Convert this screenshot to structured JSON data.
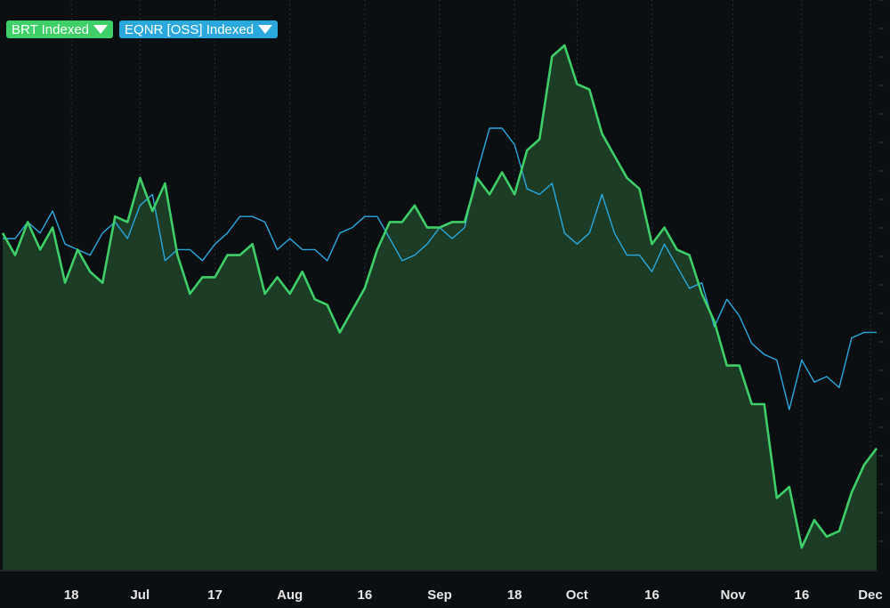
{
  "legend": [
    {
      "label": "BRT Indexed",
      "color": "#3fcf68"
    },
    {
      "label": "EQNR [OSS] Indexed",
      "color": "#2aa8de"
    }
  ],
  "chart_data": {
    "type": "line",
    "ylim": [
      0,
      100
    ],
    "xlim": [
      0,
      140
    ],
    "grid": true,
    "legend_position": "top-left",
    "x_ticks": [
      {
        "label": "18",
        "x": 11
      },
      {
        "label": "Jul",
        "x": 22
      },
      {
        "label": "17",
        "x": 34
      },
      {
        "label": "Aug",
        "x": 46
      },
      {
        "label": "16",
        "x": 58
      },
      {
        "label": "Sep",
        "x": 70
      },
      {
        "label": "18",
        "x": 82
      },
      {
        "label": "Oct",
        "x": 92
      },
      {
        "label": "16",
        "x": 104
      },
      {
        "label": "Nov",
        "x": 117
      },
      {
        "label": "16",
        "x": 128
      },
      {
        "label": "Dec",
        "x": 139
      }
    ],
    "series": [
      {
        "name": "BRT Indexed",
        "color": "#3fcf68",
        "fill": "#1d3f28",
        "x": [
          0,
          2,
          4,
          6,
          8,
          10,
          12,
          14,
          16,
          18,
          20,
          22,
          24,
          26,
          28,
          30,
          32,
          34,
          36,
          38,
          40,
          42,
          44,
          46,
          48,
          50,
          52,
          54,
          56,
          58,
          60,
          62,
          64,
          66,
          68,
          70,
          72,
          74,
          76,
          78,
          80,
          82,
          84,
          86,
          88,
          90,
          92,
          94,
          96,
          98,
          100,
          102,
          104,
          106,
          108,
          110,
          112,
          114,
          116,
          118,
          120,
          122,
          124,
          126,
          128,
          130,
          132,
          134,
          136,
          138,
          140
        ],
        "values": [
          61,
          57,
          63,
          58,
          62,
          52,
          58,
          54,
          52,
          64,
          63,
          71,
          65,
          70,
          57,
          50,
          53,
          53,
          57,
          57,
          59,
          50,
          53,
          50,
          54,
          49,
          48,
          43,
          47,
          51,
          58,
          63,
          63,
          66,
          62,
          62,
          63,
          63,
          71,
          68,
          72,
          68,
          76,
          78,
          93,
          95,
          88,
          87,
          79,
          75,
          71,
          69,
          59,
          62,
          58,
          57,
          50,
          45,
          37,
          37,
          30,
          30,
          13,
          15,
          4,
          9,
          6,
          7,
          14,
          19,
          22
        ],
        "values_note_x_spacing": "x in trading-day index units"
      },
      {
        "name": "EQNR [OSS] Indexed",
        "color": "#2aa8de",
        "x": [
          0,
          2,
          4,
          6,
          8,
          10,
          12,
          14,
          16,
          18,
          20,
          22,
          24,
          26,
          28,
          30,
          32,
          34,
          36,
          38,
          40,
          42,
          44,
          46,
          48,
          50,
          52,
          54,
          56,
          58,
          60,
          62,
          64,
          66,
          68,
          70,
          72,
          74,
          76,
          78,
          80,
          82,
          84,
          86,
          88,
          90,
          92,
          94,
          96,
          98,
          100,
          102,
          104,
          106,
          108,
          110,
          112,
          114,
          116,
          118,
          120,
          122,
          124,
          126,
          128,
          130,
          132,
          134,
          136,
          138,
          140
        ],
        "values": [
          60,
          60,
          63,
          61,
          65,
          59,
          58,
          57,
          61,
          63,
          60,
          66,
          68,
          56,
          58,
          58,
          56,
          59,
          61,
          64,
          64,
          63,
          58,
          60,
          58,
          58,
          56,
          61,
          62,
          64,
          64,
          60,
          56,
          57,
          59,
          62,
          60,
          62,
          72,
          80,
          80,
          77,
          69,
          68,
          70,
          61,
          59,
          61,
          68,
          61,
          57,
          57,
          54,
          59,
          55,
          51,
          52,
          44,
          49,
          46,
          41,
          39,
          38,
          29,
          38,
          34,
          35,
          33,
          42,
          43,
          43
        ]
      }
    ]
  }
}
